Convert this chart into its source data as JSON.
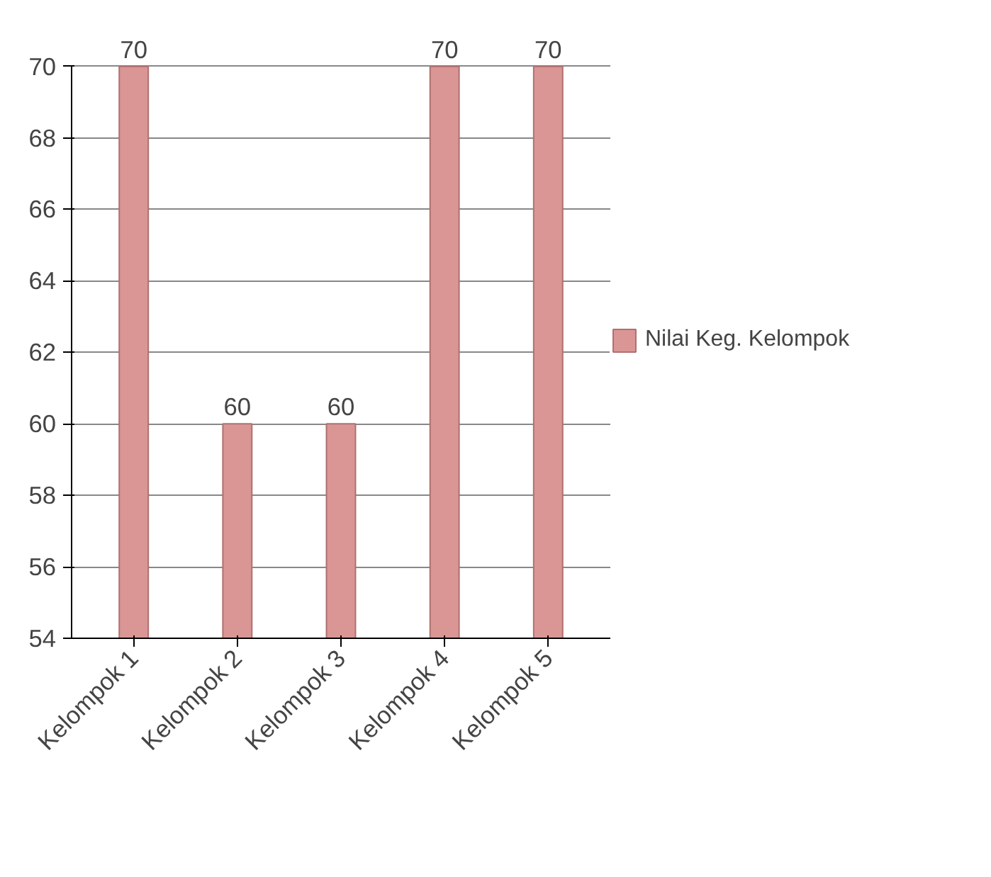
{
  "chart_data": {
    "type": "bar",
    "categories": [
      "Kelompok 1",
      "Kelompok 2",
      "Kelompok 3",
      "Kelompok 4",
      "Kelompok 5"
    ],
    "series": [
      {
        "name": "Nilai Keg. Kelompok",
        "color": "#d99694",
        "values": [
          70,
          60,
          60,
          70,
          70
        ]
      }
    ],
    "ylim": [
      54,
      70
    ],
    "yticks": [
      54,
      56,
      58,
      60,
      62,
      64,
      66,
      68,
      70
    ],
    "grid": "y",
    "legend": "right",
    "data_labels": true
  }
}
